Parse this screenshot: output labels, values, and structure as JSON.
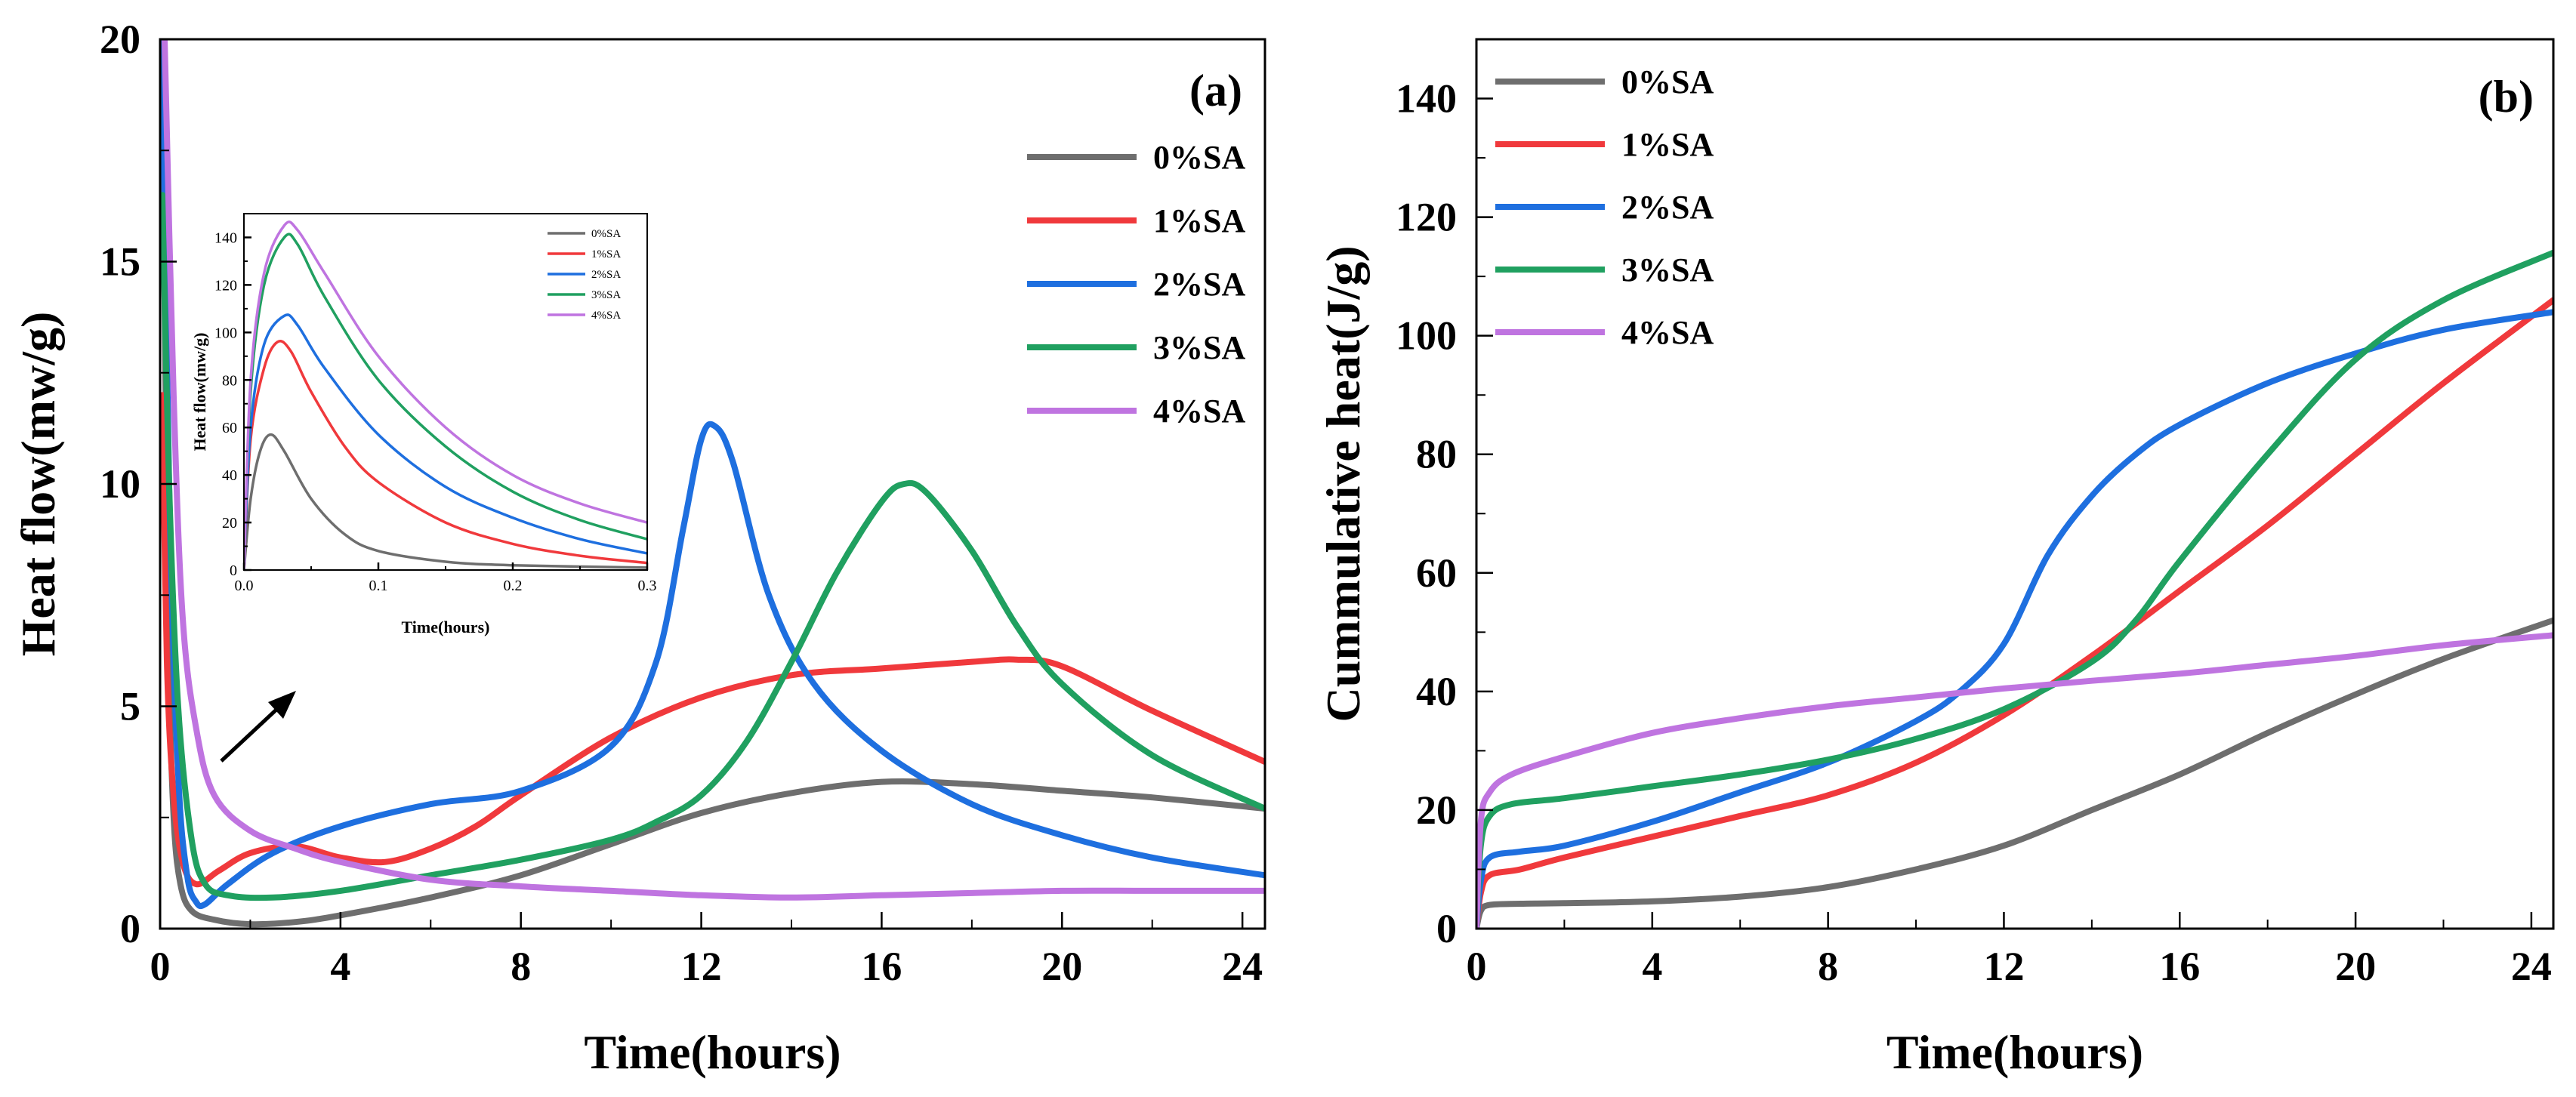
{
  "colors": {
    "0%SA": "#6e6e6e",
    "1%SA": "#f0393c",
    "2%SA": "#1e6fdf",
    "3%SA": "#20a060",
    "4%SA": "#bf74e0"
  },
  "chart_data": [
    {
      "id": "a",
      "type": "line",
      "panel_label": "(a)",
      "xlabel": "Time(hours)",
      "ylabel": "Heat flow(mw/g)",
      "xlim": [
        0,
        24.5
      ],
      "ylim": [
        0,
        20
      ],
      "xticks": [
        0,
        4,
        8,
        12,
        16,
        20,
        24
      ],
      "yticks": [
        0,
        5,
        10,
        15,
        20
      ],
      "legend_position": "top-right",
      "series": [
        {
          "name": "0%SA",
          "points": [
            [
              0.05,
              20
            ],
            [
              0.1,
              14
            ],
            [
              0.2,
              6
            ],
            [
              0.3,
              2.5
            ],
            [
              0.45,
              1
            ],
            [
              0.7,
              0.4
            ],
            [
              1.2,
              0.2
            ],
            [
              2,
              0.1
            ],
            [
              3,
              0.15
            ],
            [
              4,
              0.3
            ],
            [
              6,
              0.7
            ],
            [
              8,
              1.2
            ],
            [
              10,
              1.9
            ],
            [
              12,
              2.6
            ],
            [
              14,
              3.05
            ],
            [
              16,
              3.3
            ],
            [
              18,
              3.25
            ],
            [
              20,
              3.1
            ],
            [
              22,
              2.95
            ],
            [
              24.5,
              2.7
            ]
          ]
        },
        {
          "name": "1%SA",
          "points": [
            [
              0.05,
              12
            ],
            [
              0.15,
              6
            ],
            [
              0.3,
              3
            ],
            [
              0.5,
              1.5
            ],
            [
              0.8,
              1
            ],
            [
              1.3,
              1.3
            ],
            [
              2,
              1.7
            ],
            [
              3,
              1.85
            ],
            [
              4,
              1.6
            ],
            [
              5,
              1.5
            ],
            [
              6,
              1.8
            ],
            [
              7,
              2.3
            ],
            [
              8,
              3
            ],
            [
              10,
              4.3
            ],
            [
              12,
              5.2
            ],
            [
              14,
              5.7
            ],
            [
              16,
              5.85
            ],
            [
              18,
              6
            ],
            [
              19,
              6.05
            ],
            [
              20,
              5.9
            ],
            [
              22,
              4.9
            ],
            [
              24.5,
              3.75
            ]
          ]
        },
        {
          "name": "2%SA",
          "points": [
            [
              0.05,
              20
            ],
            [
              0.2,
              10
            ],
            [
              0.4,
              3.5
            ],
            [
              0.6,
              1.2
            ],
            [
              0.8,
              0.6
            ],
            [
              1,
              0.55
            ],
            [
              1.5,
              1
            ],
            [
              2.5,
              1.7
            ],
            [
              4,
              2.3
            ],
            [
              6,
              2.8
            ],
            [
              8,
              3.1
            ],
            [
              10,
              4.1
            ],
            [
              11,
              6
            ],
            [
              11.6,
              9
            ],
            [
              12,
              11
            ],
            [
              12.3,
              11.3
            ],
            [
              12.7,
              10.5
            ],
            [
              13.5,
              7.5
            ],
            [
              14.5,
              5.5
            ],
            [
              16,
              4
            ],
            [
              18,
              2.8
            ],
            [
              20,
              2.1
            ],
            [
              22,
              1.6
            ],
            [
              24.5,
              1.2
            ]
          ]
        },
        {
          "name": "3%SA",
          "points": [
            [
              0.05,
              16.5
            ],
            [
              0.2,
              10
            ],
            [
              0.4,
              5
            ],
            [
              0.7,
              2
            ],
            [
              1,
              1
            ],
            [
              1.5,
              0.75
            ],
            [
              2.5,
              0.7
            ],
            [
              4,
              0.85
            ],
            [
              6,
              1.2
            ],
            [
              8,
              1.55
            ],
            [
              10,
              2
            ],
            [
              11,
              2.4
            ],
            [
              12,
              3
            ],
            [
              13,
              4.2
            ],
            [
              14,
              6
            ],
            [
              15,
              8
            ],
            [
              16,
              9.6
            ],
            [
              16.5,
              10
            ],
            [
              17,
              9.8
            ],
            [
              18,
              8.5
            ],
            [
              19,
              6.8
            ],
            [
              20,
              5.5
            ],
            [
              22,
              3.9
            ],
            [
              24.5,
              2.7
            ]
          ]
        },
        {
          "name": "4%SA",
          "points": [
            [
              0.1,
              20
            ],
            [
              0.3,
              12
            ],
            [
              0.5,
              7
            ],
            [
              0.8,
              4.5
            ],
            [
              1.2,
              3
            ],
            [
              2,
              2.2
            ],
            [
              3,
              1.8
            ],
            [
              4,
              1.5
            ],
            [
              6,
              1.1
            ],
            [
              8,
              0.95
            ],
            [
              10,
              0.85
            ],
            [
              12,
              0.75
            ],
            [
              14,
              0.7
            ],
            [
              16,
              0.75
            ],
            [
              18,
              0.8
            ],
            [
              20,
              0.85
            ],
            [
              22,
              0.85
            ],
            [
              24.5,
              0.85
            ]
          ]
        }
      ],
      "annotation": "arrow"
    },
    {
      "id": "a-inset",
      "type": "line",
      "xlabel": "Time(hours)",
      "ylabel": "Heat flow(mw/g)",
      "xlim": [
        0,
        0.3
      ],
      "ylim": [
        0,
        150
      ],
      "xticks": [
        0.0,
        0.1,
        0.2,
        0.3
      ],
      "xtick_labels": [
        "0.0",
        "0.1",
        "0.2",
        "0.3"
      ],
      "yticks": [
        0,
        20,
        40,
        60,
        80,
        100,
        120,
        140
      ],
      "legend_position": "top-right",
      "series": [
        {
          "name": "0%SA",
          "points": [
            [
              0,
              0
            ],
            [
              0.005,
              30
            ],
            [
              0.012,
              50
            ],
            [
              0.02,
              57
            ],
            [
              0.03,
              50
            ],
            [
              0.05,
              30
            ],
            [
              0.075,
              15
            ],
            [
              0.1,
              8
            ],
            [
              0.15,
              3.5
            ],
            [
              0.2,
              2
            ],
            [
              0.3,
              1
            ]
          ]
        },
        {
          "name": "1%SA",
          "points": [
            [
              0,
              0
            ],
            [
              0.005,
              55
            ],
            [
              0.015,
              85
            ],
            [
              0.025,
              96
            ],
            [
              0.035,
              92
            ],
            [
              0.05,
              75
            ],
            [
              0.075,
              52
            ],
            [
              0.1,
              37
            ],
            [
              0.15,
              20
            ],
            [
              0.2,
              11
            ],
            [
              0.25,
              6
            ],
            [
              0.3,
              3
            ]
          ]
        },
        {
          "name": "2%SA",
          "points": [
            [
              0,
              0
            ],
            [
              0.005,
              60
            ],
            [
              0.015,
              95
            ],
            [
              0.03,
              107
            ],
            [
              0.04,
              103
            ],
            [
              0.06,
              85
            ],
            [
              0.1,
              57
            ],
            [
              0.15,
              35
            ],
            [
              0.2,
              22
            ],
            [
              0.25,
              13
            ],
            [
              0.3,
              7
            ]
          ]
        },
        {
          "name": "3%SA",
          "points": [
            [
              0,
              0
            ],
            [
              0.005,
              75
            ],
            [
              0.015,
              120
            ],
            [
              0.03,
              140
            ],
            [
              0.04,
              137
            ],
            [
              0.06,
              115
            ],
            [
              0.1,
              80
            ],
            [
              0.15,
              52
            ],
            [
              0.2,
              33
            ],
            [
              0.25,
              21
            ],
            [
              0.3,
              13
            ]
          ]
        },
        {
          "name": "4%SA",
          "points": [
            [
              0,
              0
            ],
            [
              0.005,
              80
            ],
            [
              0.015,
              125
            ],
            [
              0.03,
              145
            ],
            [
              0.04,
              143
            ],
            [
              0.06,
              125
            ],
            [
              0.1,
              90
            ],
            [
              0.15,
              60
            ],
            [
              0.2,
              40
            ],
            [
              0.25,
              28
            ],
            [
              0.3,
              20
            ]
          ]
        }
      ]
    },
    {
      "id": "b",
      "type": "line",
      "panel_label": "(b)",
      "xlabel": "Time(hours)",
      "ylabel": "Cummulative heat(J/g)",
      "xlim": [
        0,
        24.5
      ],
      "ylim": [
        0,
        150
      ],
      "xticks": [
        0,
        4,
        8,
        12,
        16,
        20,
        24
      ],
      "yticks": [
        0,
        20,
        40,
        60,
        80,
        100,
        120,
        140
      ],
      "legend_position": "top-left",
      "series": [
        {
          "name": "0%SA",
          "points": [
            [
              0,
              0
            ],
            [
              0.1,
              3
            ],
            [
              0.3,
              4
            ],
            [
              1,
              4.2
            ],
            [
              2,
              4.3
            ],
            [
              4,
              4.6
            ],
            [
              6,
              5.4
            ],
            [
              8,
              7
            ],
            [
              10,
              10
            ],
            [
              12,
              14
            ],
            [
              14,
              20
            ],
            [
              16,
              26
            ],
            [
              18,
              33
            ],
            [
              20,
              39.5
            ],
            [
              22,
              45.5
            ],
            [
              24.5,
              52
            ]
          ]
        },
        {
          "name": "1%SA",
          "points": [
            [
              0,
              0
            ],
            [
              0.1,
              6
            ],
            [
              0.3,
              9
            ],
            [
              1,
              10
            ],
            [
              2,
              12
            ],
            [
              4,
              15.5
            ],
            [
              6,
              19
            ],
            [
              8,
              22.5
            ],
            [
              10,
              28
            ],
            [
              12,
              36
            ],
            [
              14,
              46
            ],
            [
              16,
              57
            ],
            [
              18,
              68
            ],
            [
              20,
              80
            ],
            [
              22,
              92
            ],
            [
              24.5,
              106
            ]
          ]
        },
        {
          "name": "2%SA",
          "points": [
            [
              0,
              0
            ],
            [
              0.1,
              8
            ],
            [
              0.3,
              12
            ],
            [
              1,
              13
            ],
            [
              2,
              14
            ],
            [
              4,
              18
            ],
            [
              6,
              23
            ],
            [
              8,
              28
            ],
            [
              10,
              35
            ],
            [
              11,
              40
            ],
            [
              12,
              48
            ],
            [
              13,
              63
            ],
            [
              14,
              73
            ],
            [
              15,
              80
            ],
            [
              16,
              85
            ],
            [
              18,
              92
            ],
            [
              20,
              97
            ],
            [
              22,
              101
            ],
            [
              24.5,
              104
            ]
          ]
        },
        {
          "name": "3%SA",
          "points": [
            [
              0,
              0
            ],
            [
              0.1,
              14
            ],
            [
              0.3,
              19
            ],
            [
              0.8,
              21
            ],
            [
              2,
              22
            ],
            [
              4,
              24
            ],
            [
              6,
              26
            ],
            [
              8,
              28.5
            ],
            [
              10,
              32
            ],
            [
              12,
              37
            ],
            [
              14,
              45
            ],
            [
              15,
              52
            ],
            [
              16,
              62
            ],
            [
              18,
              80
            ],
            [
              20,
              96
            ],
            [
              22,
              106
            ],
            [
              24.5,
              114
            ]
          ]
        },
        {
          "name": "4%SA",
          "points": [
            [
              0,
              0
            ],
            [
              0.1,
              18
            ],
            [
              0.3,
              23
            ],
            [
              0.8,
              26
            ],
            [
              2,
              29
            ],
            [
              4,
              33
            ],
            [
              6,
              35.5
            ],
            [
              8,
              37.5
            ],
            [
              10,
              39
            ],
            [
              12,
              40.5
            ],
            [
              14,
              41.8
            ],
            [
              16,
              43
            ],
            [
              18,
              44.5
            ],
            [
              20,
              46
            ],
            [
              22,
              47.8
            ],
            [
              24.5,
              49.5
            ]
          ]
        }
      ]
    }
  ]
}
